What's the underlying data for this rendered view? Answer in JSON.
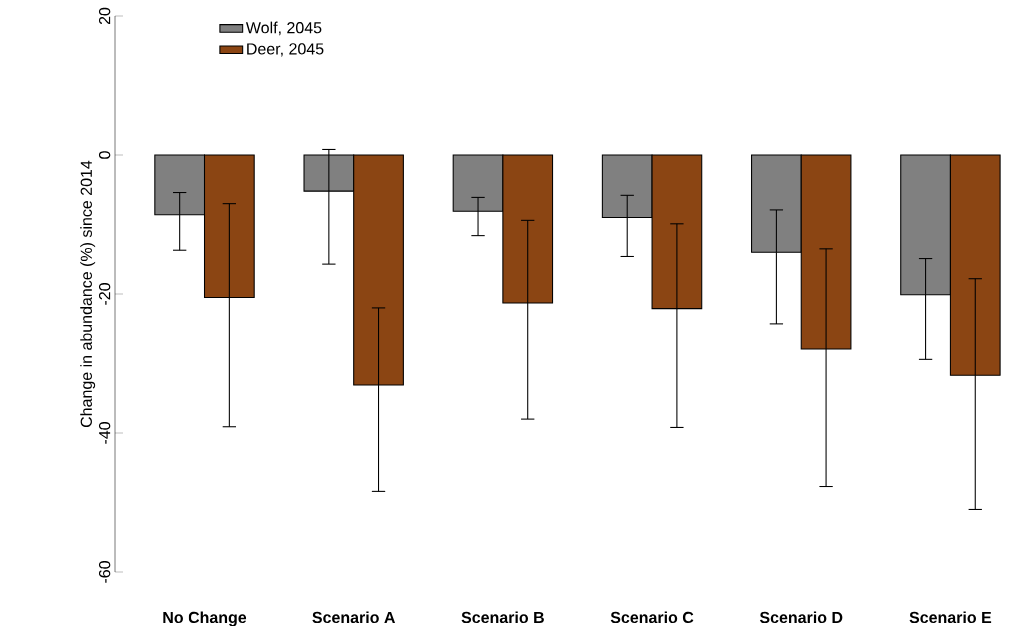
{
  "chart_data": {
    "type": "bar",
    "ylabel": "Change in abundance (%) since 2014",
    "categories": [
      "No Change",
      "Scenario A",
      "Scenario B",
      "Scenario C",
      "Scenario D",
      "Scenario E"
    ],
    "series": [
      {
        "name": "Wolf, 2045",
        "color": "#808080",
        "values": [
          -8.6,
          -5.2,
          -8.1,
          -9.0,
          -14.0,
          -20.1
        ],
        "errors": [
          [
            -13.7,
            -5.4
          ],
          [
            -15.7,
            0.8
          ],
          [
            -11.6,
            -6.1
          ],
          [
            -14.6,
            -5.8
          ],
          [
            -24.3,
            -7.9
          ],
          [
            -29.4,
            -14.9
          ]
        ]
      },
      {
        "name": "Deer, 2045",
        "color": "#8b4513",
        "values": [
          -20.5,
          -33.1,
          -21.3,
          -22.1,
          -27.9,
          -31.7
        ],
        "errors": [
          [
            -39.1,
            -7.0
          ],
          [
            -48.4,
            -22.0
          ],
          [
            -38.0,
            -9.4
          ],
          [
            -39.2,
            -9.9
          ],
          [
            -47.7,
            -13.5
          ],
          [
            -51.0,
            -17.8
          ]
        ]
      }
    ],
    "ylim": [
      -60,
      20
    ],
    "yticks": [
      -60,
      -40,
      -20,
      0,
      20
    ],
    "legend": "top left",
    "grid": false
  }
}
